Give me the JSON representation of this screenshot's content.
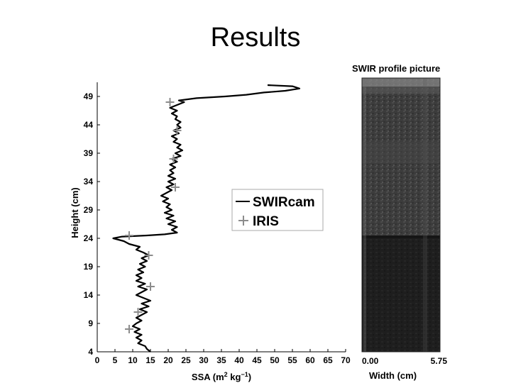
{
  "slide": {
    "title": "Results"
  },
  "chart_data": [
    {
      "type": "line",
      "xlabel_main": "SSA (m",
      "xlabel_sup1": "2",
      "xlabel_mid": " kg",
      "xlabel_sup2": "−1",
      "xlabel_end": ")",
      "ylabel": "Height (cm)",
      "xlim": [
        0,
        70
      ],
      "ylim": [
        4,
        51.5
      ],
      "x_ticks": [
        "0",
        "5",
        "10",
        "15",
        "20",
        "25",
        "30",
        "35",
        "40",
        "45",
        "50",
        "55",
        "60",
        "65",
        "70"
      ],
      "x_tick_values": [
        0,
        5,
        10,
        15,
        20,
        25,
        30,
        35,
        40,
        45,
        50,
        55,
        60,
        65,
        70
      ],
      "y_ticks": [
        "4",
        "9",
        "14",
        "19",
        "24",
        "29",
        "34",
        "39",
        "44",
        "49"
      ],
      "y_tick_values": [
        4,
        9,
        14,
        19,
        24,
        29,
        34,
        39,
        44,
        49
      ],
      "legend": {
        "position": "right",
        "entries": [
          "SWIRcam",
          "IRIS"
        ]
      },
      "series": [
        {
          "name": "SWIRcam",
          "style": "line",
          "color": "#000000",
          "points": [
            [
              15,
              4.0
            ],
            [
              14,
              4.5
            ],
            [
              13.5,
              5.0
            ],
            [
              11.5,
              5.5
            ],
            [
              12.5,
              6.0
            ],
            [
              11,
              6.5
            ],
            [
              12.5,
              7.0
            ],
            [
              10.5,
              7.5
            ],
            [
              12,
              8.0
            ],
            [
              10,
              8.5
            ],
            [
              11,
              9.0
            ],
            [
              12.5,
              9.5
            ],
            [
              11,
              10.0
            ],
            [
              12.5,
              10.5
            ],
            [
              14,
              11.0
            ],
            [
              12,
              11.5
            ],
            [
              14.5,
              12.0
            ],
            [
              12.5,
              12.5
            ],
            [
              15,
              13.0
            ],
            [
              13,
              13.5
            ],
            [
              11,
              14.0
            ],
            [
              12.5,
              14.5
            ],
            [
              14,
              15.0
            ],
            [
              11.5,
              15.5
            ],
            [
              13.5,
              16.0
            ],
            [
              11,
              16.5
            ],
            [
              12.5,
              17.0
            ],
            [
              11,
              17.5
            ],
            [
              13,
              18.0
            ],
            [
              11.5,
              18.5
            ],
            [
              13.5,
              19.0
            ],
            [
              12,
              19.5
            ],
            [
              14,
              20.0
            ],
            [
              12.5,
              20.5
            ],
            [
              14.5,
              21.0
            ],
            [
              13,
              21.5
            ],
            [
              11,
              22.0
            ],
            [
              12,
              22.5
            ],
            [
              9,
              23.0
            ],
            [
              7.5,
              23.5
            ],
            [
              4.5,
              24.0
            ],
            [
              7,
              24.3
            ],
            [
              14,
              24.5
            ],
            [
              19,
              24.7
            ],
            [
              22.5,
              25.0
            ],
            [
              21,
              25.5
            ],
            [
              22.5,
              26.0
            ],
            [
              20,
              26.5
            ],
            [
              22,
              27.0
            ],
            [
              19.5,
              27.5
            ],
            [
              21.5,
              28.0
            ],
            [
              19,
              28.5
            ],
            [
              21,
              29.0
            ],
            [
              19.5,
              29.5
            ],
            [
              20.5,
              30.0
            ],
            [
              18.5,
              30.5
            ],
            [
              20,
              31.0
            ],
            [
              18,
              31.5
            ],
            [
              19.5,
              32.0
            ],
            [
              21,
              32.5
            ],
            [
              19.5,
              33.0
            ],
            [
              21.5,
              33.5
            ],
            [
              20,
              34.0
            ],
            [
              22,
              34.5
            ],
            [
              20,
              35.0
            ],
            [
              21.5,
              35.5
            ],
            [
              20.5,
              36.0
            ],
            [
              22,
              36.5
            ],
            [
              20.5,
              37.0
            ],
            [
              22.5,
              37.5
            ],
            [
              21,
              38.0
            ],
            [
              23.5,
              38.5
            ],
            [
              22,
              39.0
            ],
            [
              24,
              39.5
            ],
            [
              22.5,
              40.0
            ],
            [
              23.5,
              40.5
            ],
            [
              21.5,
              41.0
            ],
            [
              22.5,
              41.5
            ],
            [
              21,
              42.0
            ],
            [
              23,
              42.5
            ],
            [
              21.5,
              43.0
            ],
            [
              23.5,
              43.5
            ],
            [
              22.5,
              44.0
            ],
            [
              23.5,
              44.5
            ],
            [
              22,
              45.0
            ],
            [
              22.5,
              45.5
            ],
            [
              21,
              46.0
            ],
            [
              22.5,
              46.5
            ],
            [
              20.5,
              47.0
            ],
            [
              22.5,
              47.5
            ],
            [
              24.5,
              48.0
            ],
            [
              23,
              48.3
            ],
            [
              28,
              48.7
            ],
            [
              36,
              49.0
            ],
            [
              42,
              49.3
            ],
            [
              47,
              49.7
            ],
            [
              53,
              50.0
            ],
            [
              57,
              50.4
            ],
            [
              55,
              50.8
            ],
            [
              48,
              51.0
            ]
          ]
        },
        {
          "name": "IRIS",
          "style": "marker",
          "color": "#8c8c8c",
          "points": [
            [
              20.5,
              48
            ],
            [
              22.5,
              43
            ],
            [
              21.5,
              38
            ],
            [
              22,
              33
            ],
            [
              9,
              24.5
            ],
            [
              14.5,
              21
            ],
            [
              15,
              15.5
            ],
            [
              11.5,
              11
            ],
            [
              9,
              8
            ]
          ]
        }
      ]
    },
    {
      "type": "image",
      "title": "SWIR profile picture",
      "xlabel": "Width (cm)",
      "x_ticks": [
        "0.00",
        "5.75"
      ]
    }
  ]
}
